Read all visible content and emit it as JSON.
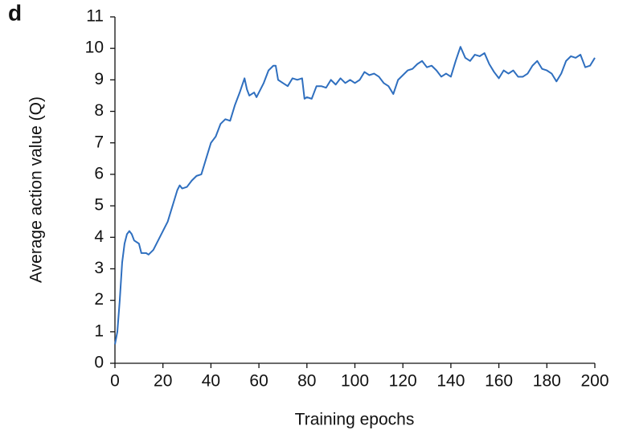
{
  "chart_data": {
    "type": "line",
    "panel_label": "d",
    "x_label": "Training epochs",
    "y_label": "Average action value (Q)",
    "x": [
      0,
      1,
      2,
      3,
      4,
      5,
      6,
      7,
      8,
      10,
      11,
      13,
      14,
      16,
      18,
      20,
      22,
      24,
      26,
      27,
      28,
      30,
      32,
      34,
      36,
      38,
      40,
      41,
      42,
      44,
      46,
      48,
      50,
      52,
      54,
      55,
      56,
      58,
      59,
      60,
      62,
      64,
      66,
      67,
      68,
      70,
      72,
      74,
      76,
      78,
      79,
      80,
      82,
      84,
      86,
      88,
      90,
      92,
      94,
      96,
      98,
      100,
      102,
      104,
      106,
      108,
      110,
      112,
      114,
      116,
      118,
      120,
      122,
      124,
      126,
      128,
      130,
      132,
      134,
      136,
      138,
      140,
      142,
      144,
      146,
      148,
      150,
      152,
      154,
      156,
      158,
      160,
      162,
      164,
      166,
      168,
      170,
      172,
      174,
      176,
      178,
      180,
      182,
      184,
      186,
      188,
      190,
      192,
      194,
      196,
      198,
      200
    ],
    "series": [
      {
        "name": "Average action value",
        "color": "#2f6fbf",
        "values": [
          0.6,
          1.0,
          2.0,
          3.2,
          3.8,
          4.1,
          4.2,
          4.1,
          3.9,
          3.8,
          3.5,
          3.5,
          3.45,
          3.6,
          3.9,
          4.2,
          4.5,
          5.0,
          5.5,
          5.65,
          5.55,
          5.6,
          5.8,
          5.95,
          6.0,
          6.5,
          7.0,
          7.1,
          7.2,
          7.6,
          7.75,
          7.7,
          8.2,
          8.6,
          9.05,
          8.7,
          8.5,
          8.6,
          8.45,
          8.6,
          8.9,
          9.3,
          9.45,
          9.45,
          9.0,
          8.9,
          8.8,
          9.05,
          9.0,
          9.05,
          8.4,
          8.45,
          8.4,
          8.8,
          8.8,
          8.75,
          9.0,
          8.85,
          9.05,
          8.9,
          9.0,
          8.9,
          9.0,
          9.25,
          9.15,
          9.2,
          9.1,
          8.9,
          8.8,
          8.55,
          9.0,
          9.15,
          9.3,
          9.35,
          9.5,
          9.6,
          9.4,
          9.45,
          9.3,
          9.1,
          9.2,
          9.1,
          9.6,
          10.05,
          9.7,
          9.6,
          9.8,
          9.75,
          9.85,
          9.5,
          9.25,
          9.05,
          9.3,
          9.2,
          9.3,
          9.1,
          9.1,
          9.2,
          9.45,
          9.6,
          9.35,
          9.3,
          9.2,
          8.95,
          9.2,
          9.6,
          9.75,
          9.7,
          9.8,
          9.4,
          9.45,
          9.7
        ]
      }
    ],
    "xlim": [
      0,
      200
    ],
    "xticks": [
      0,
      20,
      40,
      60,
      80,
      100,
      120,
      140,
      160,
      180,
      200
    ],
    "ylim": [
      0,
      11
    ],
    "yticks": [
      0,
      1,
      2,
      3,
      4,
      5,
      6,
      7,
      8,
      9,
      10,
      11
    ]
  }
}
